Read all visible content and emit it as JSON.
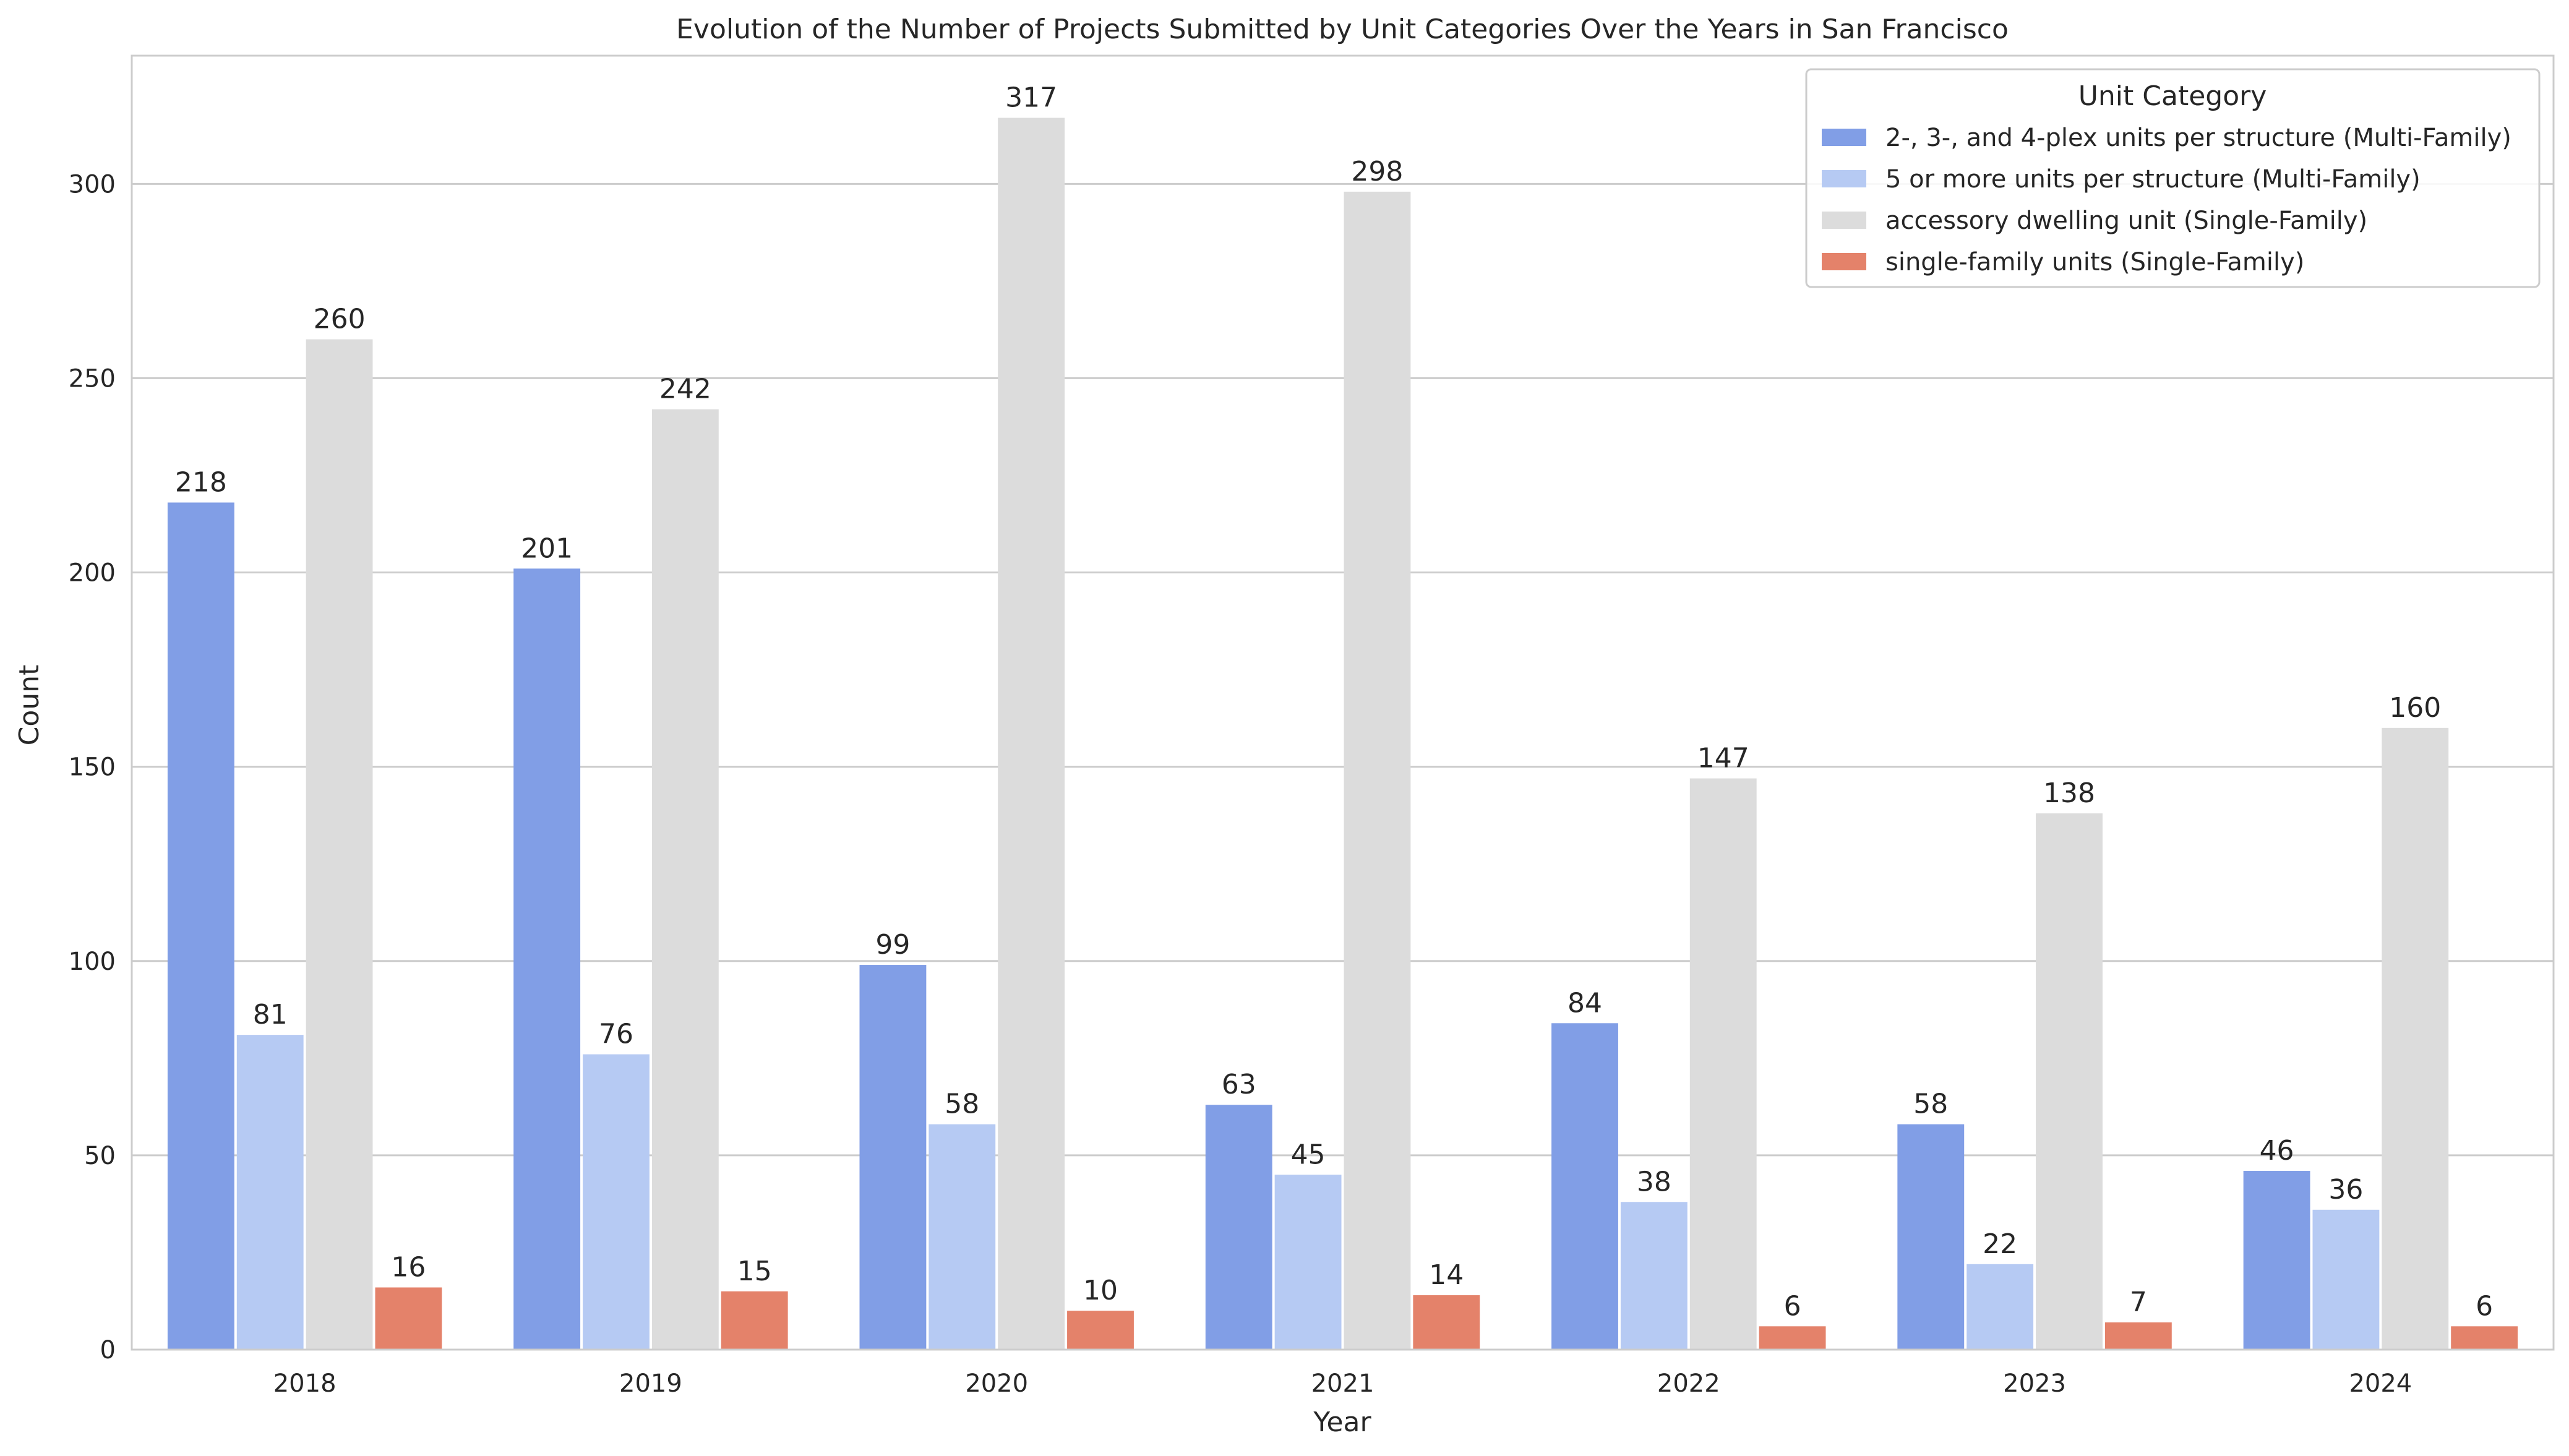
{
  "chart_data": {
    "type": "bar",
    "title": "Evolution of the Number of Projects Submitted by Unit Categories Over the Years in San Francisco",
    "xlabel": "Year",
    "ylabel": "Count",
    "categories": [
      "2018",
      "2019",
      "2020",
      "2021",
      "2022",
      "2023",
      "2024"
    ],
    "ylim": [
      0,
      333
    ],
    "yticks": [
      0,
      50,
      100,
      150,
      200,
      250,
      300
    ],
    "grid": true,
    "legend": {
      "title": "Unit Category",
      "placement": "top-right"
    },
    "series": [
      {
        "name": "2-, 3-, and 4-plex units per structure (Multi-Family)",
        "color": "#819ee6",
        "values": [
          218,
          201,
          99,
          63,
          84,
          58,
          46
        ]
      },
      {
        "name": "5 or more units per structure (Multi-Family)",
        "color": "#b6caf3",
        "values": [
          81,
          76,
          58,
          45,
          38,
          22,
          36
        ]
      },
      {
        "name": "accessory dwelling unit (Single-Family)",
        "color": "#dcdcdc",
        "values": [
          260,
          242,
          317,
          298,
          147,
          138,
          160
        ]
      },
      {
        "name": "single-family units (Single-Family)",
        "color": "#e4826a",
        "values": [
          16,
          15,
          10,
          14,
          6,
          7,
          6
        ]
      }
    ]
  }
}
